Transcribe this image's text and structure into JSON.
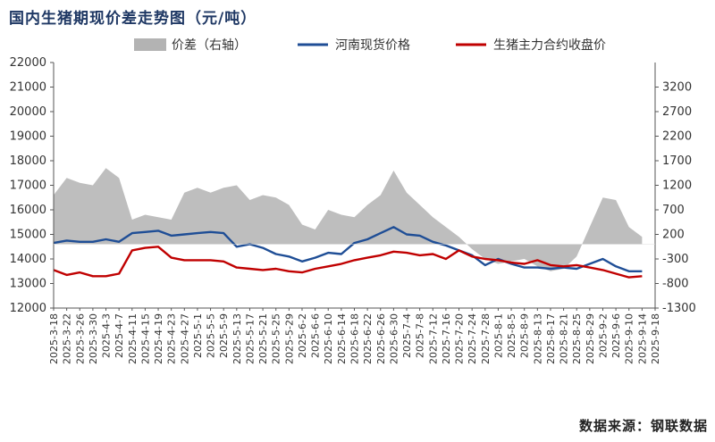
{
  "page": {
    "title": "国内生猪期现价差走势图（元/吨）",
    "source": "数据来源：钢联数据"
  },
  "colors": {
    "spread": "#b3b3b3",
    "henan_spot": "#1f4e96",
    "futures": "#c00000",
    "title": "#1f3864"
  },
  "chart_data": {
    "type": "line",
    "legend_position": "top",
    "grid": false,
    "y_left": {
      "min": 12000,
      "max": 22000,
      "ticks": [
        12000,
        13000,
        14000,
        15000,
        16000,
        17000,
        18000,
        19000,
        20000,
        21000,
        22000
      ]
    },
    "y_right": {
      "min": -1300,
      "max": 3700,
      "ticks": [
        -1300,
        -800,
        -300,
        200,
        700,
        1200,
        1700,
        2200,
        2700,
        3200
      ]
    },
    "x_tick_labels": [
      "2025-3-18",
      "2025-3-22",
      "2025-3-26",
      "2025-3-30",
      "2025-4-3",
      "2025-4-7",
      "2025-4-11",
      "2025-4-15",
      "2025-4-19",
      "2025-4-23",
      "2025-4-27",
      "2025-5-1",
      "2025-5-5",
      "2025-5-9",
      "2025-5-13",
      "2025-5-17",
      "2025-5-21",
      "2025-5-25",
      "2025-5-29",
      "2025-6-2",
      "2025-6-6",
      "2025-6-10",
      "2025-6-14",
      "2025-6-18",
      "2025-6-22",
      "2025-6-26",
      "2025-6-30",
      "2025-7-4",
      "2025-7-8",
      "2025-7-12",
      "2025-7-16",
      "2025-7-20",
      "2025-7-24",
      "2025-7-28",
      "2025-8-1",
      "2025-8-5",
      "2025-8-9",
      "2025-8-13",
      "2025-8-17",
      "2025-8-21",
      "2025-8-25",
      "2025-8-29",
      "2025-9-2",
      "2025-9-6",
      "2025-9-10",
      "2025-9-14",
      "2025-9-18"
    ],
    "dates": [
      "2025-3-18",
      "2025-3-22",
      "2025-3-26",
      "2025-3-30",
      "2025-4-3",
      "2025-4-7",
      "2025-4-11",
      "2025-4-15",
      "2025-4-19",
      "2025-4-23",
      "2025-4-27",
      "2025-5-1",
      "2025-5-5",
      "2025-5-9",
      "2025-5-13",
      "2025-5-17",
      "2025-5-21",
      "2025-5-25",
      "2025-5-29",
      "2025-6-2",
      "2025-6-6",
      "2025-6-10",
      "2025-6-14",
      "2025-6-18",
      "2025-6-22",
      "2025-6-26",
      "2025-6-30",
      "2025-7-4",
      "2025-7-8",
      "2025-7-12",
      "2025-7-16",
      "2025-7-20",
      "2025-7-24",
      "2025-7-28",
      "2025-8-1",
      "2025-8-5",
      "2025-8-9",
      "2025-8-13",
      "2025-8-17",
      "2025-8-21",
      "2025-8-25",
      "2025-8-29",
      "2025-9-2",
      "2025-9-6",
      "2025-9-10",
      "2025-9-14"
    ],
    "series": [
      {
        "name": "价差（右轴）",
        "axis": "right",
        "kind": "area",
        "values": [
          1000,
          1350,
          1250,
          1200,
          1550,
          1350,
          500,
          600,
          550,
          500,
          1050,
          1150,
          1050,
          1150,
          1200,
          900,
          1000,
          950,
          800,
          400,
          300,
          700,
          600,
          550,
          800,
          1000,
          1500,
          1050,
          800,
          550,
          350,
          150,
          -100,
          -300,
          -400,
          -350,
          -300,
          -450,
          -550,
          -500,
          -250,
          350,
          950,
          900,
          350,
          150
        ]
      },
      {
        "name": "河南现货价格",
        "axis": "left",
        "kind": "line",
        "values": [
          14650,
          14750,
          14700,
          14700,
          14800,
          14700,
          15050,
          15100,
          15150,
          14950,
          15000,
          15050,
          15100,
          15050,
          14500,
          14600,
          14450,
          14200,
          14100,
          13900,
          14050,
          14250,
          14200,
          14650,
          14800,
          15050,
          15300,
          15000,
          14950,
          14700,
          14550,
          14350,
          14150,
          13750,
          14000,
          13800,
          13650,
          13650,
          13600,
          13650,
          13600,
          13800,
          14000,
          13700,
          13500,
          13500
        ]
      },
      {
        "name": "生猪主力合约收盘价",
        "axis": "left",
        "kind": "line",
        "values": [
          13550,
          13350,
          13450,
          13300,
          13300,
          13400,
          14350,
          14450,
          14500,
          14050,
          13950,
          13950,
          13950,
          13900,
          13650,
          13600,
          13550,
          13600,
          13500,
          13450,
          13600,
          13700,
          13800,
          13950,
          14050,
          14150,
          14300,
          14250,
          14150,
          14200,
          14000,
          14350,
          14100,
          14000,
          13950,
          13850,
          13800,
          13950,
          13750,
          13700,
          13750,
          13650,
          13550,
          13400,
          13250,
          13300
        ]
      }
    ]
  }
}
